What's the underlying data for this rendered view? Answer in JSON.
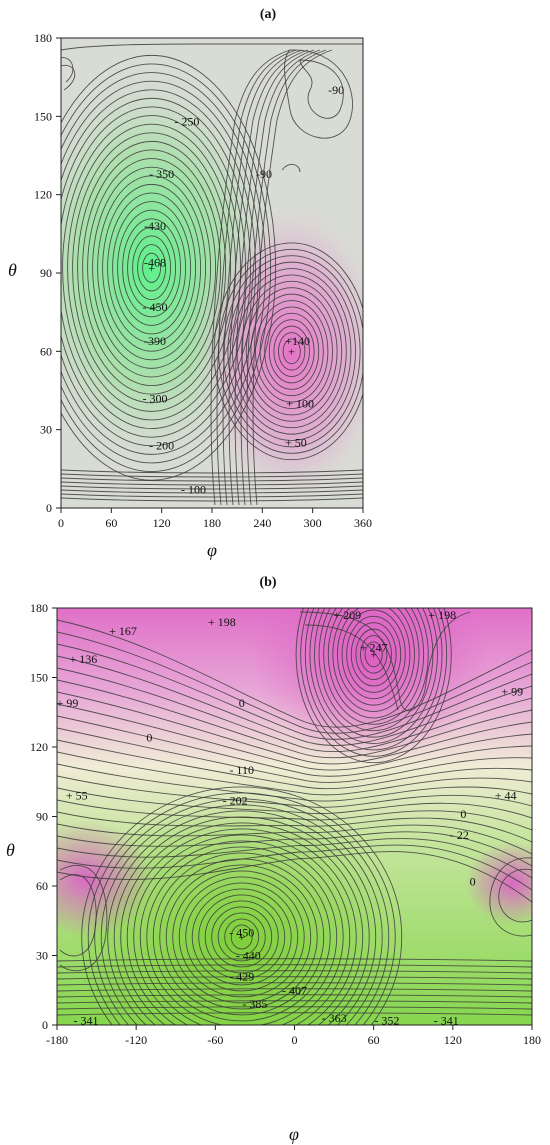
{
  "chart_data": [
    {
      "type": "contour",
      "panel_label": "(a)",
      "xlabel": "φ",
      "ylabel": "θ",
      "xlim": [
        0,
        360
      ],
      "ylim": [
        0,
        180
      ],
      "xticks": [
        0,
        60,
        120,
        180,
        240,
        300,
        360
      ],
      "yticks": [
        0,
        30,
        60,
        90,
        120,
        150,
        180
      ],
      "colors": {
        "low": "#5ef08a",
        "mid": "#d9dcd5",
        "high": "#e574c6"
      },
      "extrema": [
        {
          "x": 108,
          "y": 92,
          "value": -468,
          "kind": "min"
        },
        {
          "x": 275,
          "y": 60,
          "value": 140,
          "kind": "max"
        }
      ],
      "contour_labels": [
        {
          "x": 150,
          "y": 148,
          "text": "- 250"
        },
        {
          "x": 120,
          "y": 128,
          "text": "- 350"
        },
        {
          "x": 112,
          "y": 108,
          "text": "-430"
        },
        {
          "x": 112,
          "y": 94,
          "text": "-468"
        },
        {
          "x": 112,
          "y": 77,
          "text": "- 450"
        },
        {
          "x": 112,
          "y": 64,
          "text": "-390"
        },
        {
          "x": 112,
          "y": 42,
          "text": "- 300"
        },
        {
          "x": 120,
          "y": 24,
          "text": "- 200"
        },
        {
          "x": 158,
          "y": 7,
          "text": "- 100"
        },
        {
          "x": 242,
          "y": 128,
          "text": "-90"
        },
        {
          "x": 328,
          "y": 160,
          "text": "-90"
        },
        {
          "x": 282,
          "y": 64,
          "text": "+140"
        },
        {
          "x": 285,
          "y": 40,
          "text": "+ 100"
        },
        {
          "x": 280,
          "y": 25,
          "text": "+ 50"
        }
      ]
    },
    {
      "type": "contour",
      "panel_label": "(b)",
      "xlabel": "φ",
      "ylabel": "θ",
      "xlim": [
        -180,
        180
      ],
      "ylim": [
        0,
        180
      ],
      "xticks": [
        -180,
        -120,
        -60,
        0,
        60,
        120,
        180
      ],
      "yticks": [
        0,
        30,
        60,
        90,
        120,
        150,
        180
      ],
      "colors": {
        "low": "#86d64e",
        "mid": "#ede9d2",
        "high": "#e070c8"
      },
      "extrema": [
        {
          "x": -40,
          "y": 38,
          "value": -450,
          "kind": "min"
        },
        {
          "x": 60,
          "y": 160,
          "value": 247,
          "kind": "max"
        }
      ],
      "contour_labels": [
        {
          "x": -130,
          "y": 170,
          "text": "+ 167"
        },
        {
          "x": -160,
          "y": 158,
          "text": "+ 136"
        },
        {
          "x": -172,
          "y": 139,
          "text": "+ 99"
        },
        {
          "x": -55,
          "y": 174,
          "text": "+ 198"
        },
        {
          "x": 40,
          "y": 177,
          "text": "+ 209"
        },
        {
          "x": 60,
          "y": 163,
          "text": "+ 247"
        },
        {
          "x": 112,
          "y": 177,
          "text": "+ 198"
        },
        {
          "x": 165,
          "y": 144,
          "text": "+ 99"
        },
        {
          "x": -40,
          "y": 139,
          "text": "0"
        },
        {
          "x": -110,
          "y": 124,
          "text": "0"
        },
        {
          "x": -40,
          "y": 110,
          "text": "- 110"
        },
        {
          "x": -45,
          "y": 97,
          "text": "- 202"
        },
        {
          "x": -165,
          "y": 99,
          "text": "+ 55"
        },
        {
          "x": 160,
          "y": 99,
          "text": "+ 44"
        },
        {
          "x": 128,
          "y": 91,
          "text": "0"
        },
        {
          "x": 125,
          "y": 82,
          "text": "- 22"
        },
        {
          "x": 135,
          "y": 62,
          "text": "0"
        },
        {
          "x": -40,
          "y": 40,
          "text": "- 450"
        },
        {
          "x": -35,
          "y": 30,
          "text": "- 440"
        },
        {
          "x": -40,
          "y": 21,
          "text": "- 429"
        },
        {
          "x": 0,
          "y": 15,
          "text": "- 407"
        },
        {
          "x": -30,
          "y": 9,
          "text": "- 385"
        },
        {
          "x": 30,
          "y": 3,
          "text": "- 363"
        },
        {
          "x": 70,
          "y": 2,
          "text": "- 352"
        },
        {
          "x": 115,
          "y": 2,
          "text": "- 341"
        },
        {
          "x": -158,
          "y": 2,
          "text": "- 341"
        }
      ]
    }
  ]
}
